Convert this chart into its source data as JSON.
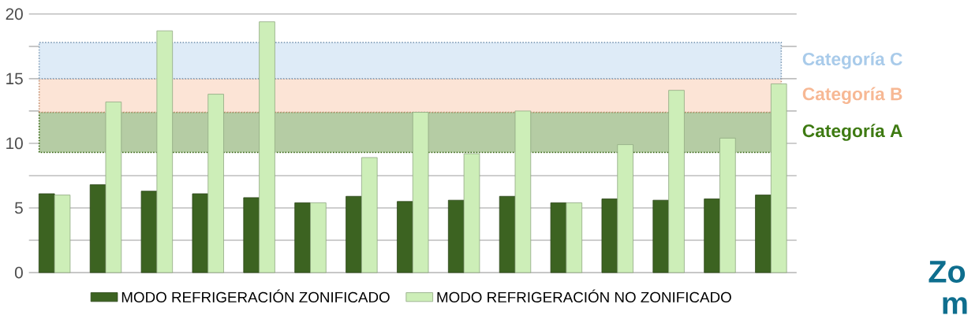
{
  "chart_data": {
    "type": "bar",
    "categories": [
      null,
      null,
      null,
      null,
      null,
      null,
      null,
      null,
      null,
      null,
      null,
      null,
      null,
      null,
      null
    ],
    "series": [
      {
        "name": "MODO REFRIGERACIÓN ZONIFICADO",
        "color": "#3c6321",
        "values": [
          6.1,
          6.8,
          6.3,
          6.1,
          5.8,
          5.4,
          5.9,
          5.5,
          5.6,
          5.9,
          5.4,
          5.7,
          5.6,
          5.7,
          6.0
        ]
      },
      {
        "name": "MODO REFRIGERACIÓN NO ZONIFICADO",
        "color": "#cdeeb8",
        "values": [
          6.0,
          13.2,
          18.7,
          13.8,
          19.4,
          5.4,
          8.9,
          12.4,
          9.2,
          12.5,
          5.4,
          9.9,
          14.1,
          10.4,
          14.6
        ]
      }
    ],
    "ylim": [
      0,
      20
    ],
    "yticks": [
      0,
      5,
      10,
      15,
      20
    ],
    "grid": "y",
    "legend": "bottom",
    "tick_labels": "y",
    "bands": [
      {
        "axis": "y",
        "from": 9.3,
        "to": 12.4,
        "label": "Categoría A",
        "color": "#b5cca4"
      },
      {
        "axis": "y",
        "from": 12.4,
        "to": 15.0,
        "label": "Categoría B",
        "color": "#fce4d6"
      },
      {
        "axis": "y",
        "from": 15.0,
        "to": 17.8,
        "label": "Categoría C",
        "color": "#deebf7"
      }
    ],
    "annotations": [
      "Zo",
      "m"
    ]
  }
}
